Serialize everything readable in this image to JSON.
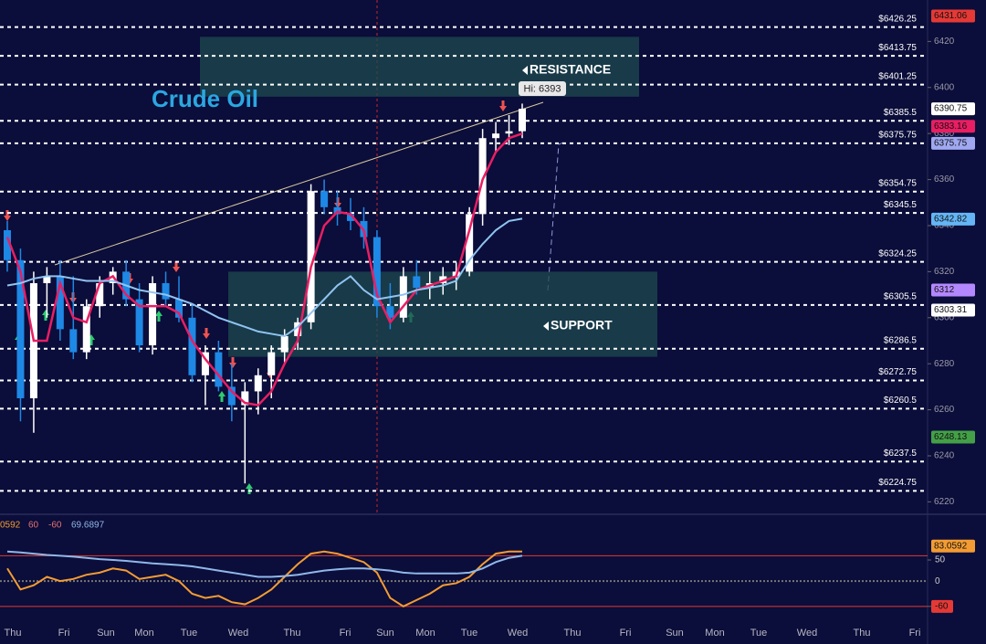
{
  "chart_data": [
    {
      "type": "candlestick",
      "title": "Crude Oil",
      "open": [
        6338,
        6325,
        6265,
        6315,
        6318,
        6295,
        6285,
        6305,
        6315,
        6320,
        6308,
        6288,
        6315,
        6308,
        6300,
        6275,
        6285,
        6270,
        6262,
        6268,
        6275,
        6285,
        6292,
        6298,
        6355,
        6348,
        6345,
        6342,
        6335,
        6305,
        6300,
        6318,
        6313,
        6315,
        6318,
        6320,
        6345,
        6378,
        6380,
        6381
      ],
      "high": [
        6342,
        6330,
        6320,
        6322,
        6325,
        6318,
        6308,
        6318,
        6322,
        6325,
        6315,
        6318,
        6320,
        6318,
        6306,
        6288,
        6290,
        6280,
        6272,
        6278,
        6288,
        6295,
        6300,
        6358,
        6360,
        6355,
        6352,
        6348,
        6338,
        6315,
        6322,
        6325,
        6320,
        6322,
        6324,
        6348,
        6382,
        6385,
        6388,
        6393
      ],
      "low": [
        6320,
        6255,
        6250,
        6300,
        6290,
        6282,
        6282,
        6300,
        6310,
        6305,
        6285,
        6284,
        6305,
        6298,
        6272,
        6262,
        6268,
        6255,
        6228,
        6258,
        6265,
        6280,
        6286,
        6295,
        6345,
        6340,
        6338,
        6330,
        6300,
        6295,
        6298,
        6310,
        6308,
        6310,
        6312,
        6318,
        6340,
        6372,
        6375,
        6378
      ],
      "close": [
        6325,
        6265,
        6315,
        6318,
        6295,
        6285,
        6305,
        6315,
        6320,
        6308,
        6288,
        6315,
        6308,
        6300,
        6275,
        6285,
        6270,
        6262,
        6268,
        6275,
        6285,
        6292,
        6298,
        6355,
        6348,
        6345,
        6342,
        6335,
        6305,
        6300,
        6318,
        6313,
        6315,
        6318,
        6320,
        6345,
        6378,
        6380,
        6381,
        6390.75
      ],
      "up_color": "#ffffff",
      "down_color": "#1e88e5",
      "series": [
        {
          "name": "fast",
          "color": "#e91e63",
          "values": [
            6335,
            6320,
            6290,
            6290,
            6315,
            6300,
            6298,
            6315,
            6318,
            6310,
            6305,
            6305,
            6305,
            6302,
            6290,
            6282,
            6275,
            6268,
            6263,
            6262,
            6268,
            6280,
            6290,
            6322,
            6340,
            6346,
            6345,
            6338,
            6310,
            6298,
            6305,
            6312,
            6314,
            6316,
            6318,
            6338,
            6360,
            6372,
            6378,
            6380
          ]
        },
        {
          "name": "slow",
          "color": "#90c4f0",
          "values": [
            6314,
            6315,
            6317,
            6318,
            6318,
            6317,
            6316,
            6316,
            6316,
            6314,
            6312,
            6311,
            6310,
            6308,
            6306,
            6303,
            6300,
            6298,
            6296,
            6294,
            6293,
            6292,
            6296,
            6302,
            6308,
            6314,
            6318,
            6312,
            6308,
            6309,
            6310,
            6312,
            6313,
            6314,
            6316,
            6325,
            6332,
            6338,
            6342,
            6343
          ]
        }
      ],
      "ylim": [
        6215,
        6438
      ],
      "yticks": [
        6220,
        6240,
        6260,
        6280,
        6300,
        6320,
        6340,
        6360,
        6380,
        6400,
        6420
      ],
      "levels": [
        {
          "value": 6426.25,
          "label": "$6426.25"
        },
        {
          "value": 6413.75,
          "label": "$6413.75"
        },
        {
          "value": 6401.25,
          "label": "$6401.25"
        },
        {
          "value": 6385.5,
          "label": "$6385.5"
        },
        {
          "value": 6375.75,
          "label": "$6375.75"
        },
        {
          "value": 6354.75,
          "label": "$6354.75"
        },
        {
          "value": 6345.5,
          "label": "$6345.5"
        },
        {
          "value": 6324.25,
          "label": "$6324.25"
        },
        {
          "value": 6305.5,
          "label": "$6305.5"
        },
        {
          "value": 6286.5,
          "label": "$6286.5"
        },
        {
          "value": 6272.75,
          "label": "$6272.75"
        },
        {
          "value": 6260.5,
          "label": "$6260.5"
        },
        {
          "value": 6237.5,
          "label": "$6237.5"
        },
        {
          "value": 6224.75,
          "label": "$6224.75"
        }
      ],
      "zones": [
        {
          "label": "RESISTANCE",
          "range": [
            6396,
            6422
          ]
        },
        {
          "label": "SUPPORT",
          "range": [
            6283,
            6320
          ]
        }
      ],
      "annotation": "Hi: 6393",
      "price_tags": [
        {
          "value": 6431.06,
          "color": "#e53935"
        },
        {
          "value": 6390.75,
          "color": "#ffffff"
        },
        {
          "value": 6383.16,
          "color": "#e91e63"
        },
        {
          "value": 6375.75,
          "color": "#9fa8f0"
        },
        {
          "value": 6342.82,
          "color": "#64b5f6"
        },
        {
          "value": 6312,
          "color": "#b388ff"
        },
        {
          "value": 6303.31,
          "color": "#ffffff"
        },
        {
          "value": 6248.13,
          "color": "#43a047"
        }
      ],
      "day_labels": [
        "Thu",
        "Fri",
        "Sun",
        "Mon",
        "Tue",
        "Wed",
        "Thu",
        "Fri",
        "Sun",
        "Mon",
        "Tue",
        "Wed",
        "Thu",
        "Fri",
        "Sun",
        "Mon",
        "Tue",
        "Wed",
        "Thu",
        "Fri"
      ]
    },
    {
      "type": "line",
      "header": [
        "0592",
        "60",
        "-60",
        "69.6897"
      ],
      "series": [
        {
          "name": "K",
          "color": "#f39c33",
          "values": [
            30,
            -20,
            -10,
            10,
            0,
            5,
            15,
            20,
            30,
            25,
            5,
            10,
            15,
            0,
            -30,
            -40,
            -35,
            -50,
            -55,
            -40,
            -20,
            10,
            40,
            65,
            70,
            65,
            55,
            45,
            20,
            -40,
            -60,
            -45,
            -30,
            -10,
            -5,
            10,
            40,
            65,
            70,
            70
          ]
        },
        {
          "name": "D",
          "color": "#8fb8e8",
          "values": [
            70,
            68,
            65,
            62,
            60,
            58,
            55,
            52,
            50,
            48,
            45,
            42,
            40,
            38,
            35,
            30,
            25,
            20,
            15,
            10,
            10,
            12,
            15,
            20,
            25,
            28,
            30,
            30,
            28,
            25,
            20,
            18,
            18,
            18,
            18,
            20,
            30,
            45,
            55,
            60
          ]
        }
      ],
      "ylim": [
        -95,
        154
      ],
      "yticks": [
        50,
        0,
        -60
      ],
      "levels": [
        60,
        -60
      ],
      "price_tags": [
        {
          "value": 83.0592,
          "color": "#f39c33"
        }
      ]
    }
  ]
}
